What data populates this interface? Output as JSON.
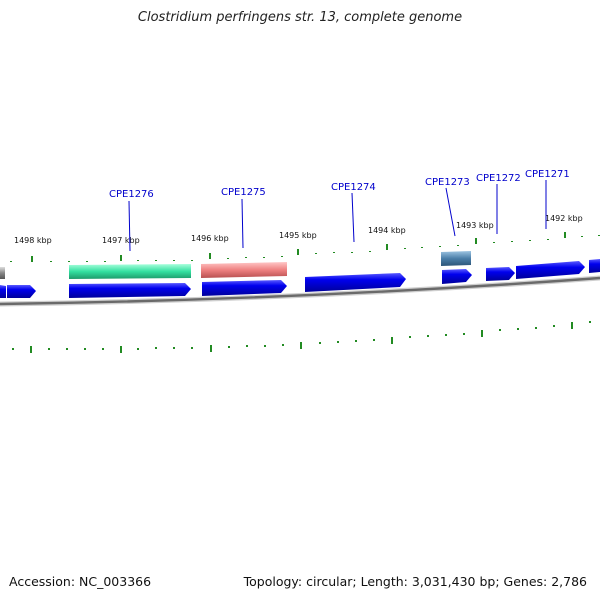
{
  "title": "Clostridium perfringens str. 13, complete genome",
  "footer": {
    "accession": "Accession: NC_003366",
    "stats": "Topology: circular; Length: 3,031,430 bp; Genes: 2,786"
  },
  "colors": {
    "background": "#ffffff",
    "cds": "#0000ee",
    "gene_green": "#33e0a0",
    "gene_red": "#ee8080",
    "gene_steel": "#4a7ea8",
    "backbone": "#777777",
    "tick": "#228b22",
    "label": "#0000cc"
  },
  "scale_labels": [
    "1498 kbp",
    "1497 kbp",
    "1496 kbp",
    "1495 kbp",
    "1494 kbp",
    "1493 kbp",
    "1492 kbp"
  ],
  "gene_labels": [
    "CPE1276",
    "CPE1275",
    "CPE1274",
    "CPE1273",
    "CPE1272",
    "CPE1271"
  ],
  "features": [
    {
      "kind": "cds",
      "strand": "forward",
      "track": "outer"
    },
    {
      "kind": "cds",
      "strand": "forward",
      "track": "outer"
    },
    {
      "kind": "gene",
      "color": "green",
      "track": "inner"
    },
    {
      "kind": "gene",
      "color": "red",
      "track": "inner"
    },
    {
      "kind": "gene",
      "color": "steel",
      "track": "inner"
    }
  ]
}
